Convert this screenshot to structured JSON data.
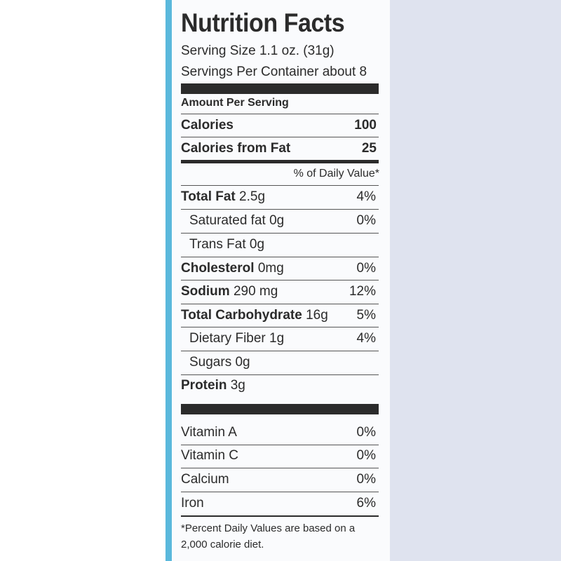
{
  "label": {
    "title": "Nutrition Facts",
    "serving_size": "Serving Size 1.1 oz. (31g)",
    "servings_per_container": "Servings Per Container about 8",
    "amount_per_serving": "Amount Per Serving",
    "calories_label": "Calories",
    "calories_value": "100",
    "calories_fat_label": "Calories from Fat",
    "calories_fat_value": "25",
    "daily_value_header": "% of Daily Value*",
    "nutrients": [
      {
        "name": "Total Fat",
        "amount": "2.5g",
        "dv": "4%"
      },
      {
        "name": "Saturated fat",
        "amount": "0g",
        "dv": "0%"
      },
      {
        "name": "Trans Fat",
        "amount": "0g",
        "dv": ""
      },
      {
        "name": "Cholesterol",
        "amount": "0mg",
        "dv": "0%"
      },
      {
        "name": "Sodium",
        "amount": "290 mg",
        "dv": "12%"
      },
      {
        "name": "Total Carbohydrate",
        "amount": "16g",
        "dv": "5%"
      },
      {
        "name": "Dietary Fiber",
        "amount": "1g",
        "dv": "4%"
      },
      {
        "name": "Sugars",
        "amount": "0g",
        "dv": ""
      },
      {
        "name": "Protein",
        "amount": "3g",
        "dv": ""
      }
    ],
    "vitamins": [
      {
        "name": "Vitamin A",
        "dv": "0%"
      },
      {
        "name": "Vitamin C",
        "dv": "0%"
      },
      {
        "name": "Calcium",
        "dv": "0%"
      },
      {
        "name": "Iron",
        "dv": "6%"
      }
    ],
    "footnote": "*Percent Daily Values are based on a 2,000 calorie diet."
  },
  "colors": {
    "accent_stripe": "#5ab8dc",
    "ink": "#2b2b2b",
    "side_panel": "#dfe3ef"
  }
}
